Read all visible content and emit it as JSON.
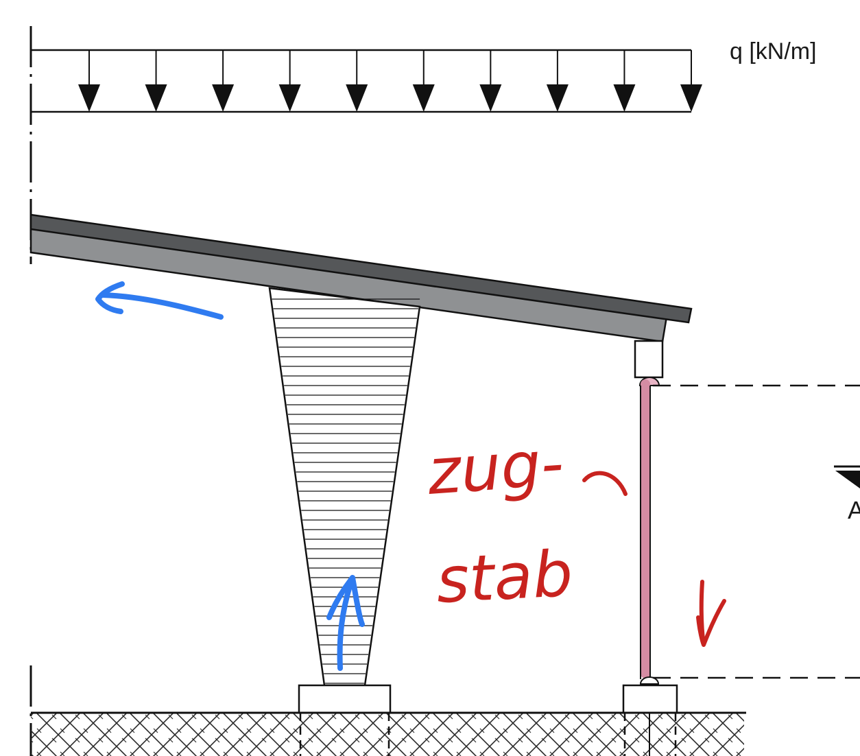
{
  "load": {
    "label": "q [kN/m]",
    "arrow_count": 10
  },
  "annotations": {
    "handwritten_text_line1": "zug-",
    "handwritten_text_line2": "stab",
    "truncated_level_label": "A"
  },
  "colors": {
    "ink": "#111111",
    "beam_gray": "#8f9193",
    "beam_dark": "#555759",
    "handwriting_red": "#c8231f",
    "highlight_pink": "#d48ca3",
    "arrow_blue": "#2f7bf0"
  }
}
